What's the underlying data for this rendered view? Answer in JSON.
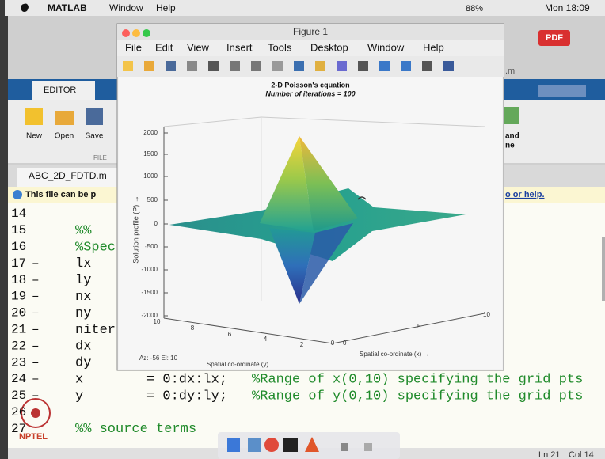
{
  "menubar": {
    "app": "MATLAB",
    "items": [
      "Window",
      "Help"
    ],
    "battery": "88%",
    "clock": "Mon 18:09"
  },
  "badge": "PDF",
  "editor": {
    "tab": "EDITOR",
    "buttons": [
      "New",
      "Open",
      "Save"
    ],
    "section": "FILE",
    "file_tab": "ABC_2D_FDTD.m",
    "file_suffix": ".m",
    "right_labels": [
      "and",
      "ne"
    ],
    "info_left": "This file can be p",
    "info_right": "o or help.",
    "lines": [
      {
        "number": "14"
      },
      {
        "number": "15",
        "comment": "%%"
      },
      {
        "number": "16",
        "comment": "%Spec"
      },
      {
        "number": "17",
        "marker": "–",
        "code": "lx"
      },
      {
        "number": "18",
        "marker": "–",
        "code": "ly"
      },
      {
        "number": "19",
        "marker": "–",
        "code": "nx"
      },
      {
        "number": "20",
        "marker": "–",
        "code": "ny"
      },
      {
        "number": "21",
        "marker": "–",
        "code": "niter"
      },
      {
        "number": "22",
        "marker": "–",
        "code": "dx"
      },
      {
        "number": "23",
        "marker": "–",
        "code": "dy"
      },
      {
        "number": "24",
        "marker": "–",
        "code": "x",
        "rhs": "= 0:dx:lx;",
        "comment": "%Range of x(0,10) specifying the grid pts"
      },
      {
        "number": "25",
        "marker": "–",
        "code": "y",
        "rhs": "= 0:dy:ly;",
        "comment": "%Range of y(0,10) specifying the grid pts"
      },
      {
        "number": "26"
      },
      {
        "number": "27",
        "comment": "%% source terms"
      }
    ],
    "status": {
      "line": "Ln 21",
      "col": "Col 14"
    }
  },
  "logo": "NPTEL",
  "figure": {
    "window_title": "Figure 1",
    "menu": [
      "File",
      "Edit",
      "View",
      "Insert",
      "Tools",
      "Desktop",
      "Window",
      "Help"
    ],
    "plot": {
      "title": "2-D Poisson's equation",
      "subtitle": "Number of iterations = 100",
      "z_label": "Solution profile (P) →",
      "z_ticks": [
        "2000",
        "1500",
        "1000",
        "500",
        "0",
        "-500",
        "-1000",
        "-1500",
        "-2000"
      ],
      "y_ticks": [
        "10",
        "8",
        "6",
        "4",
        "2",
        "0"
      ],
      "x_ticks": [
        "0",
        "5",
        "10"
      ],
      "y_label": "Spatial co-ordinate (y)",
      "x_label": "Spatial co-ordinate (x) →",
      "view": "Az: -56 El: 10"
    }
  }
}
